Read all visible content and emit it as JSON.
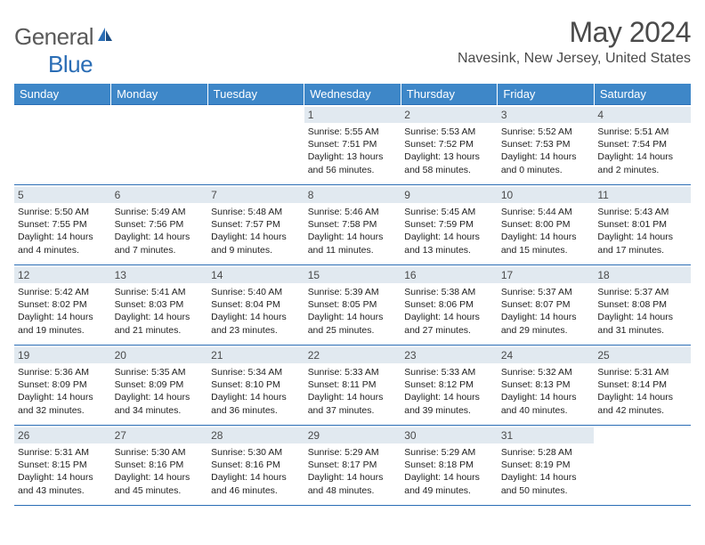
{
  "brand": {
    "part1": "General",
    "part2": "Blue"
  },
  "header": {
    "month_year": "May 2024",
    "location": "Navesink, New Jersey, United States"
  },
  "colors": {
    "header_bar": "#3e87c8",
    "border": "#2a6db5",
    "daynum_bg": "#e1e9f0",
    "text_gray": "#4a4a4a"
  },
  "day_headers": [
    "Sunday",
    "Monday",
    "Tuesday",
    "Wednesday",
    "Thursday",
    "Friday",
    "Saturday"
  ],
  "weeks": [
    [
      {
        "n": "",
        "sr": "",
        "ss": "",
        "dl": ""
      },
      {
        "n": "",
        "sr": "",
        "ss": "",
        "dl": ""
      },
      {
        "n": "",
        "sr": "",
        "ss": "",
        "dl": ""
      },
      {
        "n": "1",
        "sr": "Sunrise: 5:55 AM",
        "ss": "Sunset: 7:51 PM",
        "dl": "Daylight: 13 hours and 56 minutes."
      },
      {
        "n": "2",
        "sr": "Sunrise: 5:53 AM",
        "ss": "Sunset: 7:52 PM",
        "dl": "Daylight: 13 hours and 58 minutes."
      },
      {
        "n": "3",
        "sr": "Sunrise: 5:52 AM",
        "ss": "Sunset: 7:53 PM",
        "dl": "Daylight: 14 hours and 0 minutes."
      },
      {
        "n": "4",
        "sr": "Sunrise: 5:51 AM",
        "ss": "Sunset: 7:54 PM",
        "dl": "Daylight: 14 hours and 2 minutes."
      }
    ],
    [
      {
        "n": "5",
        "sr": "Sunrise: 5:50 AM",
        "ss": "Sunset: 7:55 PM",
        "dl": "Daylight: 14 hours and 4 minutes."
      },
      {
        "n": "6",
        "sr": "Sunrise: 5:49 AM",
        "ss": "Sunset: 7:56 PM",
        "dl": "Daylight: 14 hours and 7 minutes."
      },
      {
        "n": "7",
        "sr": "Sunrise: 5:48 AM",
        "ss": "Sunset: 7:57 PM",
        "dl": "Daylight: 14 hours and 9 minutes."
      },
      {
        "n": "8",
        "sr": "Sunrise: 5:46 AM",
        "ss": "Sunset: 7:58 PM",
        "dl": "Daylight: 14 hours and 11 minutes."
      },
      {
        "n": "9",
        "sr": "Sunrise: 5:45 AM",
        "ss": "Sunset: 7:59 PM",
        "dl": "Daylight: 14 hours and 13 minutes."
      },
      {
        "n": "10",
        "sr": "Sunrise: 5:44 AM",
        "ss": "Sunset: 8:00 PM",
        "dl": "Daylight: 14 hours and 15 minutes."
      },
      {
        "n": "11",
        "sr": "Sunrise: 5:43 AM",
        "ss": "Sunset: 8:01 PM",
        "dl": "Daylight: 14 hours and 17 minutes."
      }
    ],
    [
      {
        "n": "12",
        "sr": "Sunrise: 5:42 AM",
        "ss": "Sunset: 8:02 PM",
        "dl": "Daylight: 14 hours and 19 minutes."
      },
      {
        "n": "13",
        "sr": "Sunrise: 5:41 AM",
        "ss": "Sunset: 8:03 PM",
        "dl": "Daylight: 14 hours and 21 minutes."
      },
      {
        "n": "14",
        "sr": "Sunrise: 5:40 AM",
        "ss": "Sunset: 8:04 PM",
        "dl": "Daylight: 14 hours and 23 minutes."
      },
      {
        "n": "15",
        "sr": "Sunrise: 5:39 AM",
        "ss": "Sunset: 8:05 PM",
        "dl": "Daylight: 14 hours and 25 minutes."
      },
      {
        "n": "16",
        "sr": "Sunrise: 5:38 AM",
        "ss": "Sunset: 8:06 PM",
        "dl": "Daylight: 14 hours and 27 minutes."
      },
      {
        "n": "17",
        "sr": "Sunrise: 5:37 AM",
        "ss": "Sunset: 8:07 PM",
        "dl": "Daylight: 14 hours and 29 minutes."
      },
      {
        "n": "18",
        "sr": "Sunrise: 5:37 AM",
        "ss": "Sunset: 8:08 PM",
        "dl": "Daylight: 14 hours and 31 minutes."
      }
    ],
    [
      {
        "n": "19",
        "sr": "Sunrise: 5:36 AM",
        "ss": "Sunset: 8:09 PM",
        "dl": "Daylight: 14 hours and 32 minutes."
      },
      {
        "n": "20",
        "sr": "Sunrise: 5:35 AM",
        "ss": "Sunset: 8:09 PM",
        "dl": "Daylight: 14 hours and 34 minutes."
      },
      {
        "n": "21",
        "sr": "Sunrise: 5:34 AM",
        "ss": "Sunset: 8:10 PM",
        "dl": "Daylight: 14 hours and 36 minutes."
      },
      {
        "n": "22",
        "sr": "Sunrise: 5:33 AM",
        "ss": "Sunset: 8:11 PM",
        "dl": "Daylight: 14 hours and 37 minutes."
      },
      {
        "n": "23",
        "sr": "Sunrise: 5:33 AM",
        "ss": "Sunset: 8:12 PM",
        "dl": "Daylight: 14 hours and 39 minutes."
      },
      {
        "n": "24",
        "sr": "Sunrise: 5:32 AM",
        "ss": "Sunset: 8:13 PM",
        "dl": "Daylight: 14 hours and 40 minutes."
      },
      {
        "n": "25",
        "sr": "Sunrise: 5:31 AM",
        "ss": "Sunset: 8:14 PM",
        "dl": "Daylight: 14 hours and 42 minutes."
      }
    ],
    [
      {
        "n": "26",
        "sr": "Sunrise: 5:31 AM",
        "ss": "Sunset: 8:15 PM",
        "dl": "Daylight: 14 hours and 43 minutes."
      },
      {
        "n": "27",
        "sr": "Sunrise: 5:30 AM",
        "ss": "Sunset: 8:16 PM",
        "dl": "Daylight: 14 hours and 45 minutes."
      },
      {
        "n": "28",
        "sr": "Sunrise: 5:30 AM",
        "ss": "Sunset: 8:16 PM",
        "dl": "Daylight: 14 hours and 46 minutes."
      },
      {
        "n": "29",
        "sr": "Sunrise: 5:29 AM",
        "ss": "Sunset: 8:17 PM",
        "dl": "Daylight: 14 hours and 48 minutes."
      },
      {
        "n": "30",
        "sr": "Sunrise: 5:29 AM",
        "ss": "Sunset: 8:18 PM",
        "dl": "Daylight: 14 hours and 49 minutes."
      },
      {
        "n": "31",
        "sr": "Sunrise: 5:28 AM",
        "ss": "Sunset: 8:19 PM",
        "dl": "Daylight: 14 hours and 50 minutes."
      },
      {
        "n": "",
        "sr": "",
        "ss": "",
        "dl": ""
      }
    ]
  ]
}
